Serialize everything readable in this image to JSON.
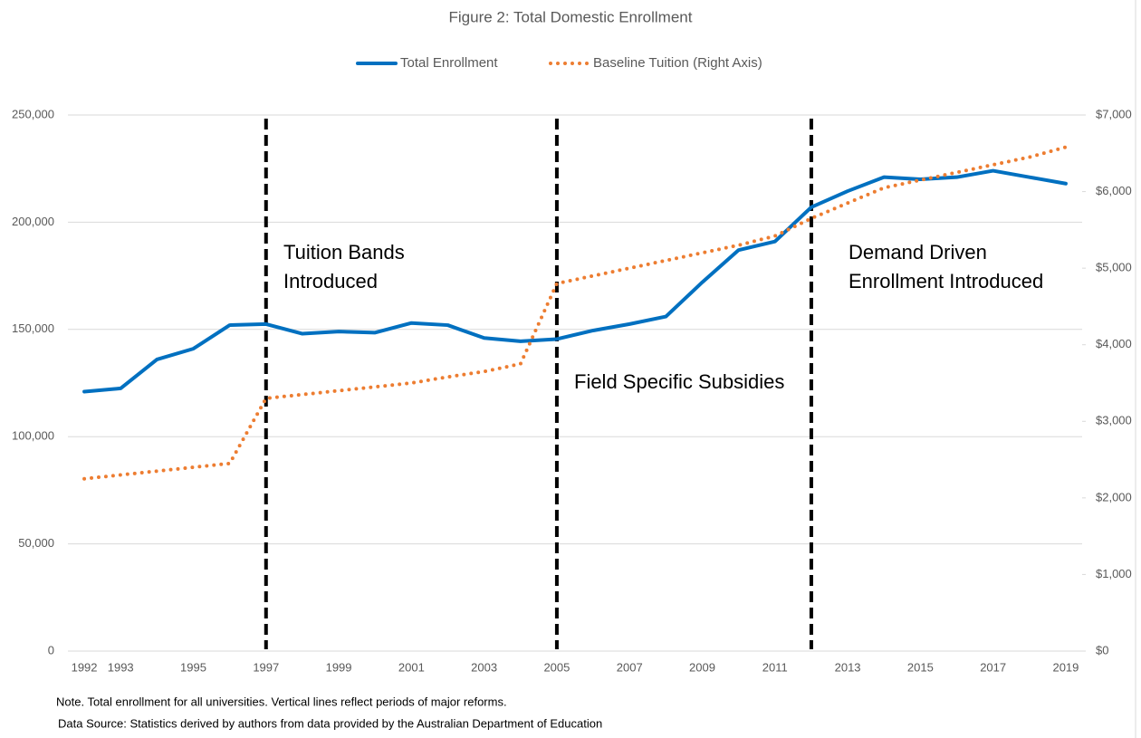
{
  "chart_data": {
    "type": "line",
    "title": "Figure 2: Total Domestic Enrollment",
    "x": [
      1992,
      1993,
      1994,
      1995,
      1996,
      1997,
      1998,
      1999,
      2000,
      2001,
      2002,
      2003,
      2004,
      2005,
      2006,
      2007,
      2008,
      2009,
      2010,
      2011,
      2012,
      2013,
      2014,
      2015,
      2016,
      2017,
      2018,
      2019
    ],
    "xlim": [
      1991.55,
      2019.45
    ],
    "xticks": [
      1992,
      1993,
      1995,
      1997,
      1999,
      2001,
      2003,
      2005,
      2007,
      2009,
      2011,
      2013,
      2015,
      2017,
      2019
    ],
    "ylim": [
      0,
      250000
    ],
    "yticks": [
      0,
      {
        "value": 50000,
        "label": "50,000"
      },
      {
        "value": 100000,
        "label": "100,000"
      },
      {
        "value": 150000,
        "label": "150,000"
      },
      {
        "value": 200000,
        "label": "200,000"
      },
      {
        "value": 250000,
        "label": "250,000"
      }
    ],
    "y2lim": [
      0,
      7000
    ],
    "y2ticks": [
      {
        "value": 0,
        "label": "$0"
      },
      {
        "value": 1000,
        "label": "$1,000"
      },
      {
        "value": 2000,
        "label": "$2,000"
      },
      {
        "value": 3000,
        "label": "$3,000"
      },
      {
        "value": 4000,
        "label": "$4,000"
      },
      {
        "value": 5000,
        "label": "$5,000"
      },
      {
        "value": 6000,
        "label": "$6,000"
      },
      {
        "value": 7000,
        "label": "$7,000"
      }
    ],
    "grid": true,
    "legend": "top",
    "series": [
      {
        "name": "Total Enrollment",
        "color": "#0070c0",
        "style": "solid",
        "values": [
          121000,
          122500,
          136000,
          141000,
          152000,
          152500,
          148000,
          149000,
          148500,
          153000,
          152000,
          146000,
          144500,
          145500,
          149500,
          152500,
          156000,
          172000,
          187000,
          191000,
          207000,
          214500,
          221000,
          220000,
          221000,
          224000,
          221000,
          218000
        ]
      },
      {
        "name": "Baseline Tuition (Right Axis)",
        "color": "#ed7d31",
        "style": "dotted",
        "axis": "y2",
        "values": [
          2250,
          2300,
          2350,
          2400,
          2450,
          3300,
          3350,
          3400,
          3450,
          3500,
          3580,
          3650,
          3750,
          4800,
          4900,
          5000,
          5100,
          5200,
          5300,
          5420,
          5650,
          5850,
          6050,
          6150,
          6250,
          6350,
          6450,
          6580
        ]
      }
    ],
    "reform_lines": [
      1997,
      2005,
      2012
    ],
    "annotations": [
      [
        "Tuition Bands",
        "Introduced"
      ],
      [
        "Field Specific Subsidies"
      ],
      [
        "Demand Driven",
        "Enrollment Introduced"
      ]
    ],
    "notes": [
      "Note. Total enrollment for all universities. Vertical lines reflect periods of major reforms.",
      "Data Source: Statistics derived by authors from data provided by the Australian Department of Education"
    ]
  }
}
